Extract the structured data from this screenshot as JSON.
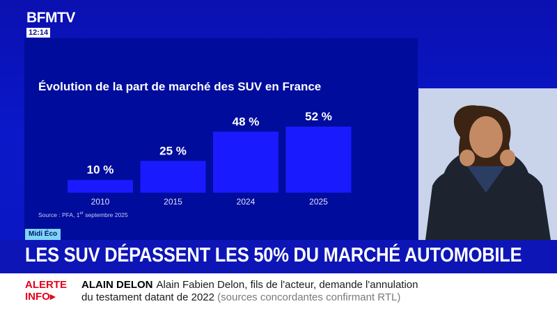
{
  "channel": {
    "logo": "BFMTV",
    "clock": "12:14"
  },
  "rubrique": "Midi Éco",
  "headline": "LES SUV DÉPASSENT LES 50% DU MARCHÉ AUTOMOBILE",
  "ticker": {
    "label_line1": "ALERTE",
    "label_line2": "INFO",
    "subject": "ALAIN DELON",
    "line1": "Alain Fabien Delon, fils de l'acteur, demande l'annulation",
    "line2": "du testament datant de 2022",
    "line2_muted": "(sources concordantes confirmant RTL)"
  },
  "colors": {
    "background": "#0c14b8",
    "panel": "#000c9c",
    "bar": "#1a1aff",
    "label": "#ffffff",
    "alert": "#e3001b"
  },
  "chart_data": {
    "type": "bar",
    "title": "Évolution de la part de marché des SUV en France",
    "categories": [
      "2010",
      "2015",
      "2024",
      "2025"
    ],
    "values": [
      10,
      25,
      48,
      52
    ],
    "data_labels": [
      "10 %",
      "25 %",
      "48 %",
      "52 %"
    ],
    "unit": "%",
    "ylim": [
      0,
      52
    ],
    "grid": false,
    "legend": "none",
    "source": "Source : PFA, 1er septembre 2025"
  }
}
